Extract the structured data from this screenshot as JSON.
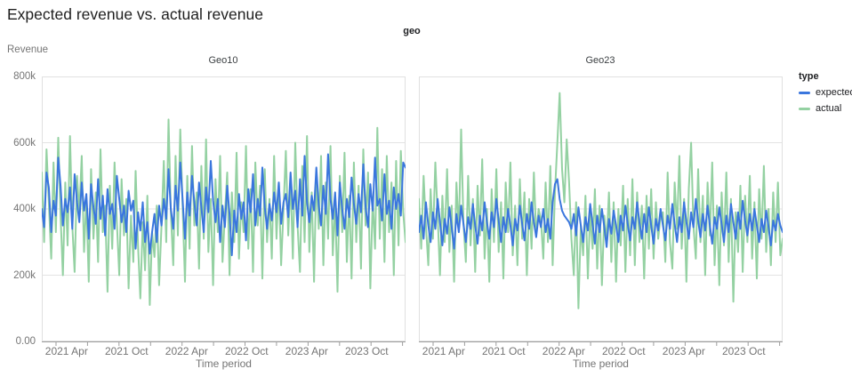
{
  "page": {
    "title": "Expected revenue vs. actual revenue"
  },
  "chart_data": {
    "type": "line",
    "title": "Expected revenue vs. actual revenue",
    "facet_field": "geo",
    "y_axis_title": "Revenue",
    "x_axis_title": "Time period",
    "y_ticks": [
      "800k",
      "600k",
      "400k",
      "200k",
      "0.00"
    ],
    "y_max_thousands": 800,
    "ylim": [
      0,
      800000
    ],
    "x_ticks": [
      "2021 Apr",
      "2021 Oct",
      "2022 Apr",
      "2022 Oct",
      "2023 Apr",
      "2023 Oct"
    ],
    "x_granularity": "weekly points, Jan 2021 through Dec 2023",
    "values_in": "thousands",
    "grid": true,
    "legend": {
      "title": "type",
      "position": "right",
      "items": [
        {
          "label": "expected",
          "color": "#3a76dd"
        },
        {
          "label": "actual",
          "color": "#94d1a2"
        }
      ]
    },
    "facets": [
      {
        "title": "Geo10",
        "series": [
          {
            "name": "expected",
            "color": "#3a76dd",
            "values": [
              400,
              345,
              510,
              465,
              330,
              425,
              380,
              555,
              470,
              350,
              430,
              390,
              465,
              340,
              505,
              420,
              360,
              480,
              395,
              445,
              310,
              475,
              405,
              355,
              490,
              370,
              440,
              320,
              460,
              385,
              415,
              340,
              500,
              430,
              360,
              410,
              330,
              455,
              395,
              425,
              280,
              390,
              335,
              420,
              300,
              360,
              265,
              330,
              385,
              300,
              410,
              350,
              430,
              370,
              520,
              400,
              340,
              470,
              395,
              540,
              430,
              310,
              450,
              380,
              500,
              420,
              350,
              480,
              405,
              330,
              465,
              390,
              545,
              425,
              360,
              430,
              300,
              410,
              345,
              470,
              385,
              260,
              395,
              330,
              445,
              370,
              420,
              305,
              460,
              390,
              505,
              350,
              430,
              380,
              525,
              405,
              340,
              415,
              365,
              450,
              390,
              480,
              355,
              420,
              445,
              375,
              510,
              400,
              455,
              345,
              490,
              380,
              560,
              420,
              360,
              440,
              395,
              525,
              410,
              350,
              470,
              385,
              565,
              430,
              370,
              450,
              320,
              480,
              400,
              340,
              430,
              375,
              495,
              415,
              355,
              445,
              390,
              535,
              405,
              345,
              475,
              395,
              555,
              410,
              430,
              365,
              505,
              385,
              425,
              340,
              465,
              400,
              445,
              380,
              540,
              525
            ]
          },
          {
            "name": "actual",
            "color": "#94d1a2",
            "values": [
              510,
              300,
              580,
              420,
              250,
              540,
              330,
              615,
              380,
              200,
              480,
              290,
              620,
              350,
              210,
              500,
              390,
              560,
              270,
              430,
              180,
              520,
              310,
              450,
              240,
              580,
              330,
              410,
              150,
              470,
              280,
              540,
              360,
              200,
              490,
              320,
              430,
              160,
              380,
              240,
              515,
              290,
              130,
              360,
              215,
              440,
              110,
              330,
              255,
              410,
              170,
              350,
              545,
              300,
              670,
              390,
              230,
              560,
              320,
              640,
              410,
              180,
              500,
              280,
              590,
              350,
              450,
              220,
              530,
              310,
              610,
              270,
              430,
              170,
              490,
              330,
              560,
              240,
              380,
              510,
              200,
              450,
              300,
              570,
              250,
              420,
              330,
              590,
              280,
              460,
              210,
              540,
              350,
              470,
              190,
              520,
              300,
              430,
              250,
              560,
              310,
              480,
              230,
              400,
              575,
              320,
              490,
              250,
              600,
              350,
              210,
              530,
              300,
              620,
              270,
              450,
              180,
              510,
              340,
              560,
              230,
              480,
              310,
              590,
              260,
              420,
              150,
              500,
              330,
              570,
              240,
              440,
              190,
              540,
              300,
              470,
              220,
              580,
              350,
              510,
              160,
              430,
              280,
              645,
              310,
              520,
              240,
              560,
              330,
              480,
              200,
              545,
              290,
              575,
              390,
              300
            ]
          }
        ]
      },
      {
        "title": "Geo23",
        "series": [
          {
            "name": "expected",
            "color": "#3a76dd",
            "values": [
              330,
              380,
              310,
              420,
              350,
              300,
              390,
              340,
              430,
              360,
              290,
              370,
              325,
              405,
              345,
              280,
              385,
              330,
              410,
              355,
              300,
              375,
              340,
              415,
              350,
              295,
              380,
              335,
              420,
              360,
              310,
              390,
              345,
              430,
              365,
              300,
              375,
              330,
              400,
              350,
              290,
              370,
              335,
              410,
              355,
              305,
              385,
              340,
              420,
              360,
              315,
              380,
              345,
              400,
              330,
              370,
              310,
              420,
              475,
              490,
              430,
              395,
              380,
              370,
              360,
              340,
              385,
              320,
              405,
              350,
              300,
              375,
              335,
              415,
              355,
              295,
              380,
              330,
              400,
              345,
              285,
              370,
              325,
              395,
              350,
              300,
              380,
              335,
              410,
              355,
              305,
              375,
              340,
              420,
              360,
              310,
              385,
              330,
              405,
              350,
              295,
              370,
              335,
              400,
              350,
              305,
              380,
              340,
              415,
              355,
              300,
              375,
              330,
              420,
              360,
              310,
              390,
              345,
              430,
              365,
              315,
              385,
              335,
              410,
              350,
              295,
              375,
              340,
              405,
              355,
              300,
              380,
              330,
              415,
              360,
              310,
              390,
              340,
              425,
              365,
              320,
              385,
              335,
              400,
              350,
              300,
              370,
              330,
              395,
              345,
              290,
              365,
              335,
              385,
              350,
              330
            ]
          },
          {
            "name": "actual",
            "color": "#94d1a2",
            "values": [
              430,
              280,
              500,
              350,
              230,
              460,
              310,
              540,
              380,
              200,
              440,
              300,
              520,
              270,
              410,
              180,
              480,
              330,
              640,
              360,
              240,
              500,
              290,
              430,
              210,
              470,
              320,
              550,
              250,
              400,
              180,
              460,
              300,
              520,
              270,
              420,
              190,
              480,
              330,
              540,
              260,
              410,
              230,
              490,
              310,
              450,
              200,
              430,
              280,
              510,
              320,
              400,
              370,
              250,
              480,
              300,
              530,
              230,
              450,
              600,
              750,
              520,
              420,
              610,
              480,
              310,
              200,
              420,
              100,
              350,
              260,
              440,
              190,
              390,
              280,
              460,
              220,
              410,
              170,
              380,
              300,
              450,
              240,
              420,
              180,
              400,
              290,
              470,
              210,
              430,
              260,
              490,
              230,
              450,
              300,
              410,
              190,
              440,
              280,
              460,
              250,
              420,
              310,
              380,
              390,
              240,
              510,
              300,
              220,
              480,
              340,
              560,
              280,
              430,
              180,
              460,
              600,
              350,
              250,
              520,
              300,
              440,
              200,
              480,
              320,
              540,
              230,
              410,
              170,
              450,
              290,
              510,
              240,
              430,
              120,
              390,
              270,
              470,
              210,
              440,
              300,
              500,
              250,
              420,
              190,
              460,
              310,
              530,
              270,
              400,
              230,
              450,
              300,
              480,
              260,
              310
            ]
          }
        ]
      }
    ],
    "style": {
      "gridline_color": "#e3e3e3",
      "plot_border_color": "#e0e0e0",
      "axis_color": "#9e9e9e",
      "background": "#ffffff"
    }
  }
}
